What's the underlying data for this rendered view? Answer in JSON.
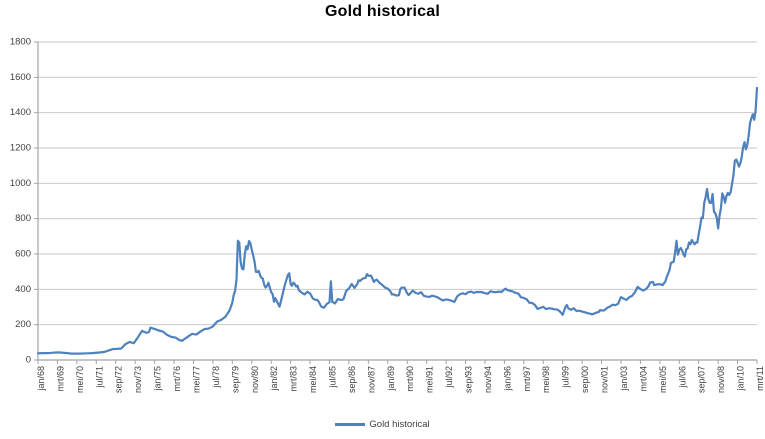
{
  "colors": {
    "series": "#4F81BD",
    "gridline": "#C9C9C9",
    "axis": "#A3A3A3",
    "tick_label": "#404040",
    "title": "#000000",
    "background": "#FFFFFF"
  },
  "chart_data": {
    "type": "line",
    "title": "Gold historical",
    "legend_label": "Gold historical",
    "legend_position": "bottom",
    "grid": true,
    "xlabel": "",
    "ylabel": "",
    "ylim": [
      0,
      1800
    ],
    "ytick_labels": [
      "0",
      "200",
      "400",
      "600",
      "800",
      "1000",
      "1200",
      "1400",
      "1600",
      "1800"
    ],
    "x_tick_labels": [
      "jan/68",
      "mrt/69",
      "mei/70",
      "jul/71",
      "sep/72",
      "nov/73",
      "jan/75",
      "mrt/76",
      "mei/77",
      "jul/78",
      "sep/79",
      "nov/80",
      "jan/82",
      "mrt/83",
      "mei/84",
      "jul/85",
      "sep/86",
      "nov/87",
      "jan/89",
      "mrt/90",
      "mei/91",
      "jul/92",
      "sep/93",
      "nov/94",
      "jan/96",
      "mrt/97",
      "mei/98",
      "jul/99",
      "sep/00",
      "nov/01",
      "jan/03",
      "mrt/04",
      "mei/05",
      "jul/06",
      "sep/07",
      "nov/08",
      "jan/10",
      "mrt/11"
    ],
    "months_per_tick": 14,
    "total_months": 518,
    "series": [
      {
        "name": "Gold historical",
        "points": [
          [
            0,
            38
          ],
          [
            3,
            39
          ],
          [
            6,
            39
          ],
          [
            9,
            40
          ],
          [
            12,
            42
          ],
          [
            15,
            43
          ],
          [
            18,
            41
          ],
          [
            21,
            39
          ],
          [
            24,
            36
          ],
          [
            27,
            36
          ],
          [
            30,
            36
          ],
          [
            33,
            37
          ],
          [
            36,
            38
          ],
          [
            39,
            39
          ],
          [
            42,
            41
          ],
          [
            45,
            43
          ],
          [
            48,
            46
          ],
          [
            51,
            54
          ],
          [
            54,
            62
          ],
          [
            57,
            63
          ],
          [
            60,
            65
          ],
          [
            63,
            90
          ],
          [
            66,
            102
          ],
          [
            69,
            95
          ],
          [
            72,
            129
          ],
          [
            75,
            165
          ],
          [
            78,
            154
          ],
          [
            80,
            159
          ],
          [
            81,
            183
          ],
          [
            84,
            176
          ],
          [
            87,
            167
          ],
          [
            90,
            161
          ],
          [
            93,
            142
          ],
          [
            96,
            131
          ],
          [
            99,
            127
          ],
          [
            102,
            112
          ],
          [
            104,
            109
          ],
          [
            105,
            116
          ],
          [
            108,
            132
          ],
          [
            111,
            148
          ],
          [
            114,
            144
          ],
          [
            117,
            161
          ],
          [
            120,
            175
          ],
          [
            123,
            178
          ],
          [
            126,
            190
          ],
          [
            129,
            217
          ],
          [
            132,
            227
          ],
          [
            135,
            245
          ],
          [
            138,
            280
          ],
          [
            140,
            325
          ],
          [
            141,
            368
          ],
          [
            142,
            392
          ],
          [
            143,
            455
          ],
          [
            144,
            675
          ],
          [
            145,
            665
          ],
          [
            146,
            554
          ],
          [
            147,
            517
          ],
          [
            148,
            513
          ],
          [
            149,
            600
          ],
          [
            150,
            644
          ],
          [
            151,
            627
          ],
          [
            152,
            673
          ],
          [
            153,
            661
          ],
          [
            154,
            623
          ],
          [
            155,
            594
          ],
          [
            156,
            557
          ],
          [
            157,
            499
          ],
          [
            158,
            498
          ],
          [
            159,
            505
          ],
          [
            160,
            480
          ],
          [
            161,
            465
          ],
          [
            162,
            460
          ],
          [
            163,
            425
          ],
          [
            164,
            410
          ],
          [
            165,
            420
          ],
          [
            166,
            437
          ],
          [
            167,
            410
          ],
          [
            168,
            384
          ],
          [
            169,
            374
          ],
          [
            170,
            330
          ],
          [
            171,
            350
          ],
          [
            172,
            333
          ],
          [
            174,
            302
          ],
          [
            176,
            364
          ],
          [
            178,
            430
          ],
          [
            180,
            481
          ],
          [
            181,
            491
          ],
          [
            182,
            430
          ],
          [
            183,
            420
          ],
          [
            184,
            438
          ],
          [
            185,
            430
          ],
          [
            186,
            416
          ],
          [
            187,
            420
          ],
          [
            188,
            394
          ],
          [
            190,
            381
          ],
          [
            192,
            371
          ],
          [
            194,
            386
          ],
          [
            195,
            381
          ],
          [
            196,
            377
          ],
          [
            198,
            348
          ],
          [
            200,
            340
          ],
          [
            201,
            341
          ],
          [
            202,
            333
          ],
          [
            204,
            303
          ],
          [
            206,
            296
          ],
          [
            208,
            317
          ],
          [
            210,
            327
          ],
          [
            211,
            445
          ],
          [
            212,
            328
          ],
          [
            213,
            325
          ],
          [
            214,
            320
          ],
          [
            216,
            345
          ],
          [
            218,
            340
          ],
          [
            220,
            343
          ],
          [
            222,
            390
          ],
          [
            224,
            405
          ],
          [
            226,
            430
          ],
          [
            228,
            408
          ],
          [
            230,
            430
          ],
          [
            231,
            451
          ],
          [
            232,
            448
          ],
          [
            234,
            461
          ],
          [
            236,
            465
          ],
          [
            237,
            486
          ],
          [
            238,
            477
          ],
          [
            240,
            477
          ],
          [
            242,
            442
          ],
          [
            243,
            451
          ],
          [
            244,
            455
          ],
          [
            246,
            437
          ],
          [
            248,
            425
          ],
          [
            250,
            410
          ],
          [
            252,
            404
          ],
          [
            254,
            387
          ],
          [
            255,
            371
          ],
          [
            256,
            372
          ],
          [
            258,
            365
          ],
          [
            260,
            367
          ],
          [
            261,
            401
          ],
          [
            262,
            410
          ],
          [
            264,
            410
          ],
          [
            266,
            377
          ],
          [
            267,
            368
          ],
          [
            268,
            375
          ],
          [
            270,
            393
          ],
          [
            272,
            380
          ],
          [
            274,
            375
          ],
          [
            276,
            384
          ],
          [
            278,
            363
          ],
          [
            280,
            359
          ],
          [
            282,
            357
          ],
          [
            284,
            364
          ],
          [
            286,
            360
          ],
          [
            288,
            354
          ],
          [
            290,
            344
          ],
          [
            292,
            337
          ],
          [
            294,
            343
          ],
          [
            296,
            340
          ],
          [
            298,
            335
          ],
          [
            300,
            329
          ],
          [
            302,
            360
          ],
          [
            303,
            367
          ],
          [
            304,
            372
          ],
          [
            306,
            378
          ],
          [
            308,
            372
          ],
          [
            310,
            384
          ],
          [
            312,
            387
          ],
          [
            314,
            380
          ],
          [
            316,
            385
          ],
          [
            318,
            385
          ],
          [
            320,
            384
          ],
          [
            322,
            378
          ],
          [
            324,
            375
          ],
          [
            326,
            389
          ],
          [
            328,
            385
          ],
          [
            330,
            384
          ],
          [
            332,
            387
          ],
          [
            334,
            385
          ],
          [
            336,
            400
          ],
          [
            337,
            404
          ],
          [
            338,
            396
          ],
          [
            340,
            392
          ],
          [
            342,
            388
          ],
          [
            344,
            380
          ],
          [
            346,
            376
          ],
          [
            348,
            355
          ],
          [
            350,
            351
          ],
          [
            352,
            344
          ],
          [
            354,
            324
          ],
          [
            356,
            323
          ],
          [
            358,
            311
          ],
          [
            360,
            289
          ],
          [
            362,
            295
          ],
          [
            364,
            301
          ],
          [
            366,
            288
          ],
          [
            368,
            293
          ],
          [
            370,
            291
          ],
          [
            372,
            287
          ],
          [
            374,
            286
          ],
          [
            376,
            275
          ],
          [
            378,
            256
          ],
          [
            380,
            300
          ],
          [
            381,
            311
          ],
          [
            382,
            293
          ],
          [
            384,
            284
          ],
          [
            386,
            293
          ],
          [
            388,
            277
          ],
          [
            390,
            279
          ],
          [
            392,
            274
          ],
          [
            394,
            270
          ],
          [
            396,
            265
          ],
          [
            398,
            262
          ],
          [
            399,
            258
          ],
          [
            402,
            267
          ],
          [
            404,
            272
          ],
          [
            405,
            283
          ],
          [
            406,
            280
          ],
          [
            408,
            281
          ],
          [
            410,
            295
          ],
          [
            412,
            302
          ],
          [
            414,
            313
          ],
          [
            416,
            310
          ],
          [
            418,
            319
          ],
          [
            420,
            356
          ],
          [
            422,
            347
          ],
          [
            424,
            340
          ],
          [
            426,
            356
          ],
          [
            428,
            363
          ],
          [
            430,
            383
          ],
          [
            432,
            414
          ],
          [
            434,
            402
          ],
          [
            436,
            393
          ],
          [
            438,
            401
          ],
          [
            440,
            420
          ],
          [
            441,
            439
          ],
          [
            443,
            442
          ],
          [
            444,
            424
          ],
          [
            446,
            428
          ],
          [
            448,
            429
          ],
          [
            450,
            424
          ],
          [
            452,
            445
          ],
          [
            453,
            470
          ],
          [
            455,
            510
          ],
          [
            456,
            550
          ],
          [
            458,
            557
          ],
          [
            459,
            610
          ],
          [
            460,
            675
          ],
          [
            461,
            596
          ],
          [
            462,
            623
          ],
          [
            463,
            634
          ],
          [
            464,
            621
          ],
          [
            465,
            598
          ],
          [
            466,
            586
          ],
          [
            467,
            627
          ],
          [
            468,
            631
          ],
          [
            469,
            665
          ],
          [
            470,
            655
          ],
          [
            471,
            679
          ],
          [
            472,
            667
          ],
          [
            473,
            655
          ],
          [
            474,
            665
          ],
          [
            475,
            665
          ],
          [
            476,
            713
          ],
          [
            477,
            755
          ],
          [
            478,
            806
          ],
          [
            479,
            803
          ],
          [
            480,
            890
          ],
          [
            481,
            922
          ],
          [
            482,
            968
          ],
          [
            483,
            910
          ],
          [
            484,
            889
          ],
          [
            485,
            890
          ],
          [
            486,
            940
          ],
          [
            487,
            839
          ],
          [
            488,
            830
          ],
          [
            489,
            806
          ],
          [
            490,
            745
          ],
          [
            491,
            816
          ],
          [
            492,
            858
          ],
          [
            493,
            943
          ],
          [
            494,
            924
          ],
          [
            495,
            890
          ],
          [
            496,
            929
          ],
          [
            497,
            946
          ],
          [
            498,
            934
          ],
          [
            499,
            949
          ],
          [
            500,
            997
          ],
          [
            501,
            1043
          ],
          [
            502,
            1127
          ],
          [
            503,
            1135
          ],
          [
            504,
            1118
          ],
          [
            505,
            1095
          ],
          [
            506,
            1113
          ],
          [
            507,
            1149
          ],
          [
            508,
            1205
          ],
          [
            509,
            1233
          ],
          [
            510,
            1193
          ],
          [
            511,
            1216
          ],
          [
            512,
            1271
          ],
          [
            513,
            1342
          ],
          [
            514,
            1370
          ],
          [
            515,
            1390
          ],
          [
            516,
            1360
          ],
          [
            517,
            1412
          ],
          [
            518,
            1540
          ]
        ]
      }
    ]
  }
}
